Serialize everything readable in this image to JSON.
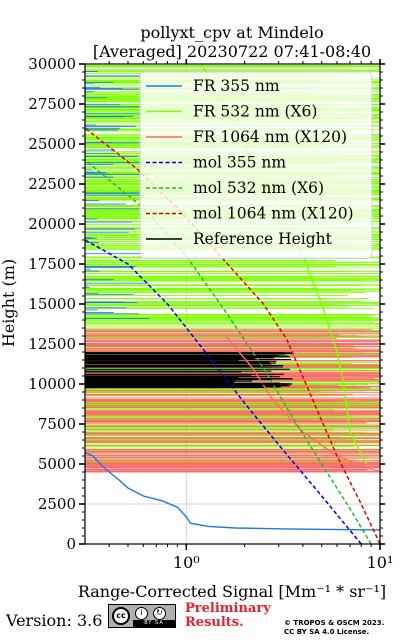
{
  "chart_data": {
    "type": "line",
    "title_line1": "pollyxt_cpv at Mindelo",
    "title_line2": "[Averaged] 20230722 07:41-08:40",
    "xlabel": "Range-Corrected Signal [Mm⁻¹ * sr⁻¹]",
    "ylabel": "Height (m)",
    "xscale": "log",
    "xlim": [
      0.3,
      10
    ],
    "ylim": [
      0,
      30000
    ],
    "x_ticks": [
      1,
      10
    ],
    "x_tick_labels": [
      "10⁰",
      "10¹"
    ],
    "y_ticks": [
      0,
      2500,
      5000,
      7500,
      10000,
      12500,
      15000,
      17500,
      20000,
      22500,
      25000,
      27500,
      30000
    ],
    "grid": true,
    "legend_position": "top-right",
    "series": [
      {
        "name": "FR 355 nm",
        "color": "#1f77e4",
        "style": "solid",
        "points": [
          [
            0.3,
            5700
          ],
          [
            0.33,
            5500
          ],
          [
            0.36,
            5000
          ],
          [
            0.4,
            4500
          ],
          [
            0.45,
            4000
          ],
          [
            0.5,
            3500
          ],
          [
            0.6,
            3000
          ],
          [
            0.75,
            2700
          ],
          [
            0.9,
            2300
          ],
          [
            1.0,
            1700
          ],
          [
            1.05,
            1300
          ],
          [
            1.3,
            1100
          ],
          [
            1.8,
            1000
          ],
          [
            3.0,
            950
          ],
          [
            6.0,
            900
          ],
          [
            10.0,
            880
          ]
        ]
      },
      {
        "name": "FR 532 nm (X6)",
        "color": "#7fff00",
        "style": "solid",
        "points": [
          [
            8.5,
            5000
          ],
          [
            7.0,
            7000
          ],
          [
            6.5,
            10000
          ],
          [
            6.0,
            12000
          ],
          [
            5.0,
            15000
          ],
          [
            4.0,
            18000
          ],
          [
            3.0,
            21000
          ],
          [
            2.2,
            24000
          ],
          [
            1.6,
            27000
          ],
          [
            1.2,
            30000
          ]
        ]
      },
      {
        "name": "FR 1064 nm (X120)",
        "color": "#ff6a6a",
        "style": "solid",
        "points": [
          [
            10.0,
            4500
          ],
          [
            6.0,
            5500
          ],
          [
            4.0,
            7000
          ],
          [
            2.8,
            9000
          ],
          [
            2.2,
            11000
          ],
          [
            1.6,
            13000
          ]
        ]
      },
      {
        "name": "mol 355 nm",
        "color": "#0000dd",
        "style": "dashed",
        "points": [
          [
            8.0,
            0
          ],
          [
            5.0,
            3000
          ],
          [
            3.0,
            6200
          ],
          [
            2.0,
            8800
          ],
          [
            1.2,
            12300
          ],
          [
            0.8,
            15000
          ],
          [
            0.5,
            17500
          ],
          [
            0.3,
            19000
          ]
        ]
      },
      {
        "name": "mol 532 nm (X6)",
        "color": "#22bb22",
        "style": "dashed",
        "points": [
          [
            9.0,
            0
          ],
          [
            7.0,
            2200
          ],
          [
            5.0,
            5000
          ],
          [
            3.5,
            8000
          ],
          [
            2.5,
            11000
          ],
          [
            1.6,
            14500
          ],
          [
            1.0,
            18000
          ],
          [
            0.6,
            21000
          ],
          [
            0.3,
            24000
          ]
        ]
      },
      {
        "name": "mol 1064 nm (X120)",
        "color": "#dd0000",
        "style": "dashed",
        "points": [
          [
            10.0,
            0
          ],
          [
            8.0,
            2500
          ],
          [
            6.0,
            5500
          ],
          [
            4.5,
            9000
          ],
          [
            3.3,
            12800
          ],
          [
            2.5,
            15000
          ],
          [
            1.5,
            18000
          ],
          [
            0.9,
            21000
          ],
          [
            0.55,
            23500
          ],
          [
            0.3,
            26000
          ]
        ]
      },
      {
        "name": "Reference Height",
        "color": "#000000",
        "style": "solid",
        "points": [
          [
            0.3,
            10000
          ],
          [
            3.5,
            10000
          ]
        ]
      }
    ]
  },
  "footer": {
    "version": "Version: 3.6",
    "preliminary_line1": "Preliminary",
    "preliminary_line2": "Results.",
    "license_line1": "© TROPOS & OSCM 2023.",
    "license_line2": "CC BY SA 4.0 License.",
    "badge_cc": "cc",
    "badge_strip": "BY   SA"
  },
  "colors": {
    "ref_height": "#000000"
  }
}
